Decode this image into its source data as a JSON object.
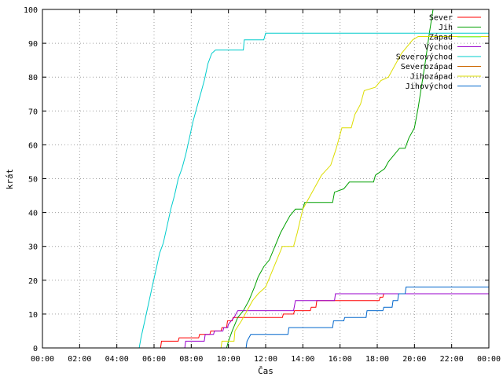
{
  "chart_data": {
    "type": "line",
    "title": "",
    "xlabel": "Čas",
    "ylabel": "krát",
    "x_unit": "hours",
    "xlim": [
      0,
      24
    ],
    "ylim": [
      0,
      100
    ],
    "x_ticks": [
      {
        "value": 0,
        "label": "00:00"
      },
      {
        "value": 2,
        "label": "02:00"
      },
      {
        "value": 4,
        "label": "04:00"
      },
      {
        "value": 6,
        "label": "06:00"
      },
      {
        "value": 8,
        "label": "08:00"
      },
      {
        "value": 10,
        "label": "10:00"
      },
      {
        "value": 12,
        "label": "12:00"
      },
      {
        "value": 14,
        "label": "14:00"
      },
      {
        "value": 16,
        "label": "16:00"
      },
      {
        "value": 18,
        "label": "18:00"
      },
      {
        "value": 20,
        "label": "20:00"
      },
      {
        "value": 22,
        "label": "22:00"
      },
      {
        "value": 24,
        "label": "00:00"
      }
    ],
    "y_ticks": [
      0,
      10,
      20,
      30,
      40,
      50,
      60,
      70,
      80,
      90,
      100
    ],
    "grid": true,
    "legend_position": "top-right",
    "series": [
      {
        "name": "Sever",
        "color": "#ff0000",
        "points": [
          [
            0,
            0
          ],
          [
            6.35,
            0
          ],
          [
            6.4,
            2
          ],
          [
            7.3,
            2
          ],
          [
            7.35,
            3
          ],
          [
            8.4,
            3
          ],
          [
            8.45,
            4
          ],
          [
            9.0,
            4
          ],
          [
            9.05,
            5
          ],
          [
            9.6,
            5
          ],
          [
            9.65,
            6
          ],
          [
            9.9,
            6
          ],
          [
            9.95,
            8
          ],
          [
            10.2,
            8
          ],
          [
            10.25,
            9
          ],
          [
            12.9,
            9
          ],
          [
            12.95,
            10
          ],
          [
            13.5,
            10
          ],
          [
            13.55,
            11
          ],
          [
            14.4,
            11
          ],
          [
            14.45,
            12
          ],
          [
            14.7,
            12
          ],
          [
            14.75,
            14
          ],
          [
            18.1,
            14
          ],
          [
            18.15,
            15
          ],
          [
            18.3,
            15
          ],
          [
            18.35,
            16
          ],
          [
            24,
            16
          ]
        ]
      },
      {
        "name": "Jih",
        "color": "#00a000",
        "points": [
          [
            0,
            0
          ],
          [
            9.9,
            0
          ],
          [
            10.0,
            2
          ],
          [
            10.2,
            5
          ],
          [
            10.5,
            9
          ],
          [
            10.8,
            11
          ],
          [
            11.1,
            14
          ],
          [
            11.4,
            18
          ],
          [
            11.6,
            21
          ],
          [
            11.9,
            24
          ],
          [
            12.2,
            26
          ],
          [
            12.5,
            30
          ],
          [
            12.8,
            34
          ],
          [
            13.1,
            37
          ],
          [
            13.3,
            39
          ],
          [
            13.6,
            41
          ],
          [
            14.0,
            41
          ],
          [
            14.1,
            43
          ],
          [
            15.6,
            43
          ],
          [
            15.7,
            46
          ],
          [
            16.2,
            47
          ],
          [
            16.5,
            49
          ],
          [
            17.8,
            49
          ],
          [
            17.9,
            51
          ],
          [
            18.4,
            53
          ],
          [
            18.6,
            55
          ],
          [
            18.9,
            57
          ],
          [
            19.2,
            59
          ],
          [
            19.5,
            59
          ],
          [
            19.7,
            62
          ],
          [
            20.0,
            65
          ],
          [
            20.2,
            71
          ],
          [
            20.4,
            78
          ],
          [
            20.6,
            85
          ],
          [
            20.8,
            93
          ],
          [
            21.0,
            100
          ]
        ]
      },
      {
        "name": "Západ",
        "color": "#66ff66",
        "points": [
          [
            21.2,
            100
          ],
          [
            24,
            100
          ]
        ]
      },
      {
        "name": "Východ",
        "color": "#9900cc",
        "points": [
          [
            0,
            0
          ],
          [
            7.65,
            0
          ],
          [
            7.7,
            2
          ],
          [
            8.7,
            2
          ],
          [
            8.75,
            4
          ],
          [
            9.2,
            4
          ],
          [
            9.25,
            5
          ],
          [
            9.7,
            5
          ],
          [
            9.75,
            6
          ],
          [
            9.95,
            6
          ],
          [
            10.0,
            7
          ],
          [
            10.3,
            9
          ],
          [
            10.5,
            11
          ],
          [
            13.5,
            11
          ],
          [
            13.6,
            14
          ],
          [
            15.7,
            14
          ],
          [
            15.75,
            16
          ],
          [
            24,
            16
          ]
        ]
      },
      {
        "name": "Severovýchod",
        "color": "#00cccc",
        "points": [
          [
            0,
            0
          ],
          [
            5.2,
            0
          ],
          [
            5.3,
            3
          ],
          [
            5.5,
            8
          ],
          [
            5.7,
            13
          ],
          [
            5.9,
            18
          ],
          [
            6.1,
            23
          ],
          [
            6.3,
            28
          ],
          [
            6.5,
            31
          ],
          [
            6.7,
            36
          ],
          [
            6.9,
            41
          ],
          [
            7.1,
            45
          ],
          [
            7.3,
            50
          ],
          [
            7.5,
            53
          ],
          [
            7.7,
            57
          ],
          [
            7.9,
            62
          ],
          [
            8.1,
            67
          ],
          [
            8.3,
            71
          ],
          [
            8.5,
            75
          ],
          [
            8.7,
            79
          ],
          [
            8.9,
            84
          ],
          [
            9.1,
            87
          ],
          [
            9.3,
            88
          ],
          [
            10.8,
            88
          ],
          [
            10.85,
            91
          ],
          [
            11.9,
            91
          ],
          [
            12.0,
            93
          ],
          [
            24,
            93
          ]
        ]
      },
      {
        "name": "Severozápad",
        "color": "#cc6600",
        "points": [
          [
            0,
            0
          ],
          [
            24,
            0
          ]
        ]
      },
      {
        "name": "Jihozápad",
        "color": "#dddd00",
        "points": [
          [
            0,
            0
          ],
          [
            9.6,
            0
          ],
          [
            9.65,
            2
          ],
          [
            10.3,
            2
          ],
          [
            10.35,
            5
          ],
          [
            10.7,
            8
          ],
          [
            11.0,
            11
          ],
          [
            11.3,
            14
          ],
          [
            11.6,
            16
          ],
          [
            12.0,
            18
          ],
          [
            12.3,
            22
          ],
          [
            12.6,
            26
          ],
          [
            12.9,
            30
          ],
          [
            13.5,
            30
          ],
          [
            13.7,
            34
          ],
          [
            14.0,
            41
          ],
          [
            14.4,
            45
          ],
          [
            14.7,
            48
          ],
          [
            15.0,
            51
          ],
          [
            15.5,
            54
          ],
          [
            15.8,
            59
          ],
          [
            16.1,
            65
          ],
          [
            16.6,
            65
          ],
          [
            16.8,
            69
          ],
          [
            17.1,
            72
          ],
          [
            17.3,
            76
          ],
          [
            17.9,
            77
          ],
          [
            18.2,
            79
          ],
          [
            18.6,
            80
          ],
          [
            18.9,
            83
          ],
          [
            19.1,
            85
          ],
          [
            19.3,
            87
          ],
          [
            19.6,
            89
          ],
          [
            19.9,
            91
          ],
          [
            20.2,
            92
          ],
          [
            24,
            92
          ]
        ]
      },
      {
        "name": "Jihovýchod",
        "color": "#0066cc",
        "points": [
          [
            0,
            0
          ],
          [
            10.95,
            0
          ],
          [
            11.0,
            2
          ],
          [
            11.2,
            4
          ],
          [
            13.2,
            4
          ],
          [
            13.25,
            6
          ],
          [
            15.6,
            6
          ],
          [
            15.65,
            8
          ],
          [
            16.2,
            8
          ],
          [
            16.25,
            9
          ],
          [
            17.4,
            9
          ],
          [
            17.45,
            11
          ],
          [
            18.3,
            11
          ],
          [
            18.35,
            12
          ],
          [
            18.8,
            12
          ],
          [
            18.85,
            14
          ],
          [
            19.1,
            14
          ],
          [
            19.15,
            16
          ],
          [
            19.5,
            16
          ],
          [
            19.55,
            18
          ],
          [
            24,
            18
          ]
        ]
      }
    ]
  }
}
